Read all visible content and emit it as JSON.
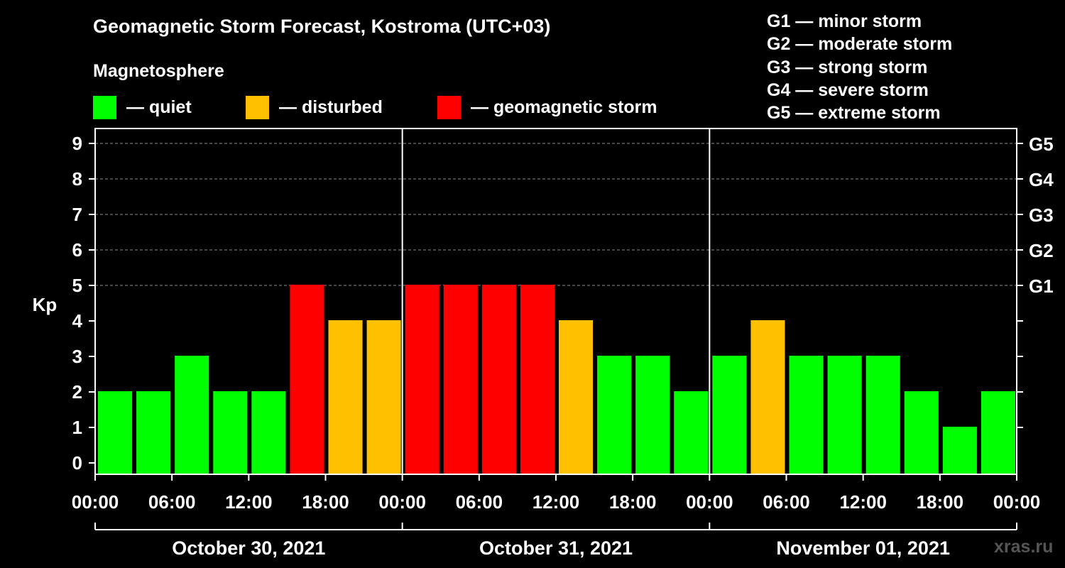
{
  "title": "Geomagnetic Storm Forecast, Kostroma (UTC+03)",
  "subtitle": "Magnetosphere",
  "legend": [
    {
      "label": "— quiet",
      "color": "#00ff00"
    },
    {
      "label": "— disturbed",
      "color": "#ffc000"
    },
    {
      "label": "— geomagnetic storm",
      "color": "#ff0000"
    }
  ],
  "g_levels": [
    "G1 — minor storm",
    "G2 — moderate storm",
    "G3 — strong storm",
    "G4 — severe storm",
    "G5 — extreme storm"
  ],
  "watermark": "xras.ru",
  "chart_data": {
    "type": "bar",
    "title": "Geomagnetic Storm Forecast, Kostroma (UTC+03)",
    "ylabel": "Kp",
    "ylim": [
      0,
      9
    ],
    "y_ticks": [
      "0",
      "1",
      "2",
      "3",
      "4",
      "5",
      "6",
      "7",
      "8",
      "9"
    ],
    "right_ticks": [
      {
        "kp": 5,
        "label": "G1"
      },
      {
        "kp": 6,
        "label": "G2"
      },
      {
        "kp": 7,
        "label": "G3"
      },
      {
        "kp": 8,
        "label": "G4"
      },
      {
        "kp": 9,
        "label": "G5"
      }
    ],
    "x_tick_labels": [
      "00:00",
      "06:00",
      "12:00",
      "18:00",
      "00:00",
      "06:00",
      "12:00",
      "18:00",
      "00:00",
      "06:00",
      "12:00",
      "18:00",
      "00:00"
    ],
    "days": [
      "October 30, 2021",
      "October 31, 2021",
      "November 01, 2021"
    ],
    "interval_hours": 3,
    "values": [
      2,
      2,
      3,
      2,
      2,
      5,
      4,
      4,
      5,
      5,
      5,
      5,
      4,
      3,
      3,
      2,
      3,
      4,
      3,
      3,
      3,
      2,
      1,
      2
    ],
    "status_colors": {
      "quiet": "#00ff00",
      "disturbed": "#ffc000",
      "storm": "#ff0000"
    },
    "grid": true
  }
}
